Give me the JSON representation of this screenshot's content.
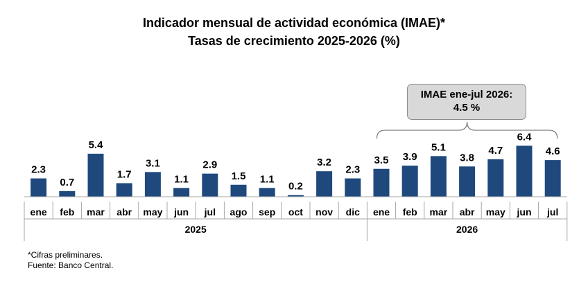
{
  "title_line1": "Indicador mensual de actividad económica (IMAE)*",
  "title_line2": "Tasas de crecimiento 2025-2026 (%)",
  "callout": {
    "line1": "IMAE ene-jul 2026:",
    "line2": "4.5 %"
  },
  "footnotes": [
    "*Cifras preliminares.",
    "Fuente: Banco Central."
  ],
  "chart_data": {
    "type": "bar",
    "categories": [
      "ene",
      "feb",
      "mar",
      "abr",
      "may",
      "jun",
      "jul",
      "ago",
      "sep",
      "oct",
      "nov",
      "dic",
      "ene",
      "feb",
      "mar",
      "abr",
      "may",
      "jun",
      "jul"
    ],
    "groups": [
      {
        "label": "2025",
        "start": 0,
        "count": 12
      },
      {
        "label": "2026",
        "start": 12,
        "count": 7
      }
    ],
    "values": [
      2.3,
      0.7,
      5.4,
      1.7,
      3.1,
      1.1,
      2.9,
      1.5,
      1.1,
      0.2,
      3.2,
      2.3,
      3.5,
      3.9,
      5.1,
      3.8,
      4.7,
      6.4,
      4.6
    ],
    "data_labels": [
      "2.3",
      "0.7",
      "5.4",
      "1.7",
      "3.1",
      "1.1",
      "2.9",
      "1.5",
      "1.1",
      "0.2",
      "3.2",
      "2.3",
      "3.5",
      "3.9",
      "5.1",
      "3.8",
      "4.7",
      "6.4",
      "4.6"
    ],
    "bar_color": "#1f497d",
    "ylim": [
      0,
      7
    ],
    "grid": false,
    "legend": "none"
  }
}
